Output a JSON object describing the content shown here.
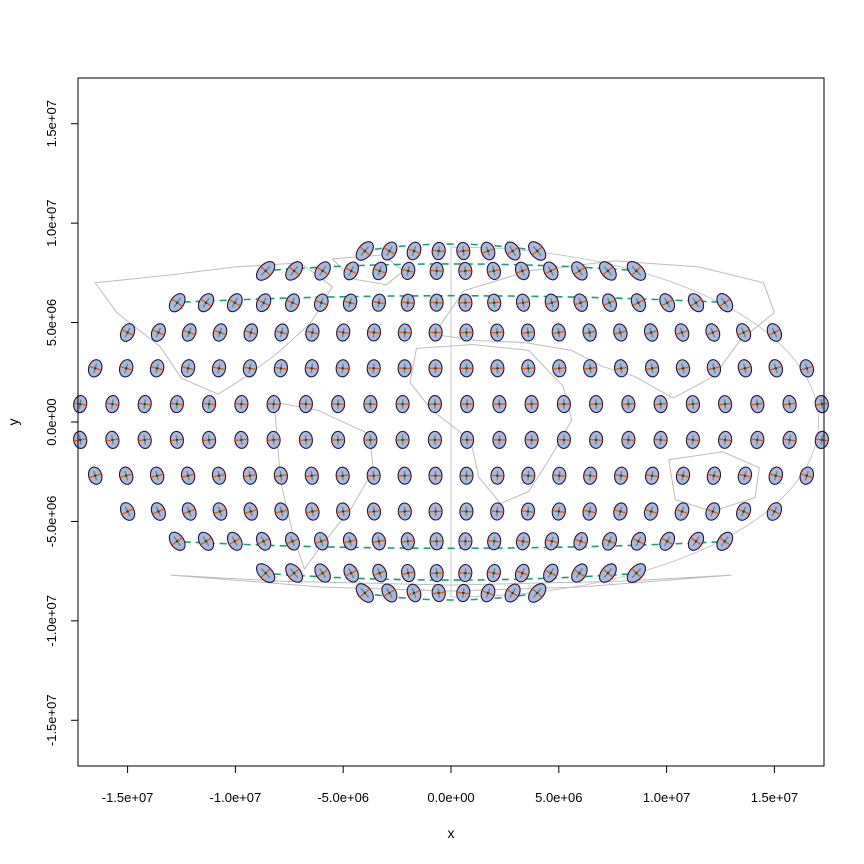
{
  "chart_data": {
    "type": "scatter",
    "title": "",
    "xlabel": "x",
    "ylabel": "y",
    "xlim": [
      -17300000,
      17300000
    ],
    "ylim": [
      -17300000,
      17300000
    ],
    "xticks": [
      {
        "value": -15000000,
        "label": "-1.5e+07"
      },
      {
        "value": -10000000,
        "label": "-1.0e+07"
      },
      {
        "value": -5000000,
        "label": "-5.0e+06"
      },
      {
        "value": 0,
        "label": "0.0e+00"
      },
      {
        "value": 5000000,
        "label": "5.0e+06"
      },
      {
        "value": 10000000,
        "label": "1.0e+07"
      },
      {
        "value": 15000000,
        "label": "1.5e+07"
      }
    ],
    "yticks": [
      {
        "value": -15000000,
        "label": "-1.5e+07"
      },
      {
        "value": -10000000,
        "label": "-1.0e+07"
      },
      {
        "value": -5000000,
        "label": "-5.0e+06"
      },
      {
        "value": 0,
        "label": "0.0e+00"
      },
      {
        "value": 5000000,
        "label": "5.0e+06"
      },
      {
        "value": 10000000,
        "label": "1.0e+07"
      },
      {
        "value": 15000000,
        "label": "1.5e+07"
      }
    ],
    "grid": false,
    "legend": "none",
    "projection_extent": {
      "x_half_width": 17400000,
      "y_half_height": 8800000
    },
    "indicatrix_rows": [
      {
        "y": 8600000,
        "cols": 8,
        "x_half": 4000000,
        "stretch": 3.2
      },
      {
        "y": 7600000,
        "cols": 14,
        "x_half": 8600000,
        "stretch": 2.1
      },
      {
        "y": 6000000,
        "cols": 20,
        "x_half": 12700000,
        "stretch": 1.5
      },
      {
        "y": 4500000,
        "cols": 22,
        "x_half": 15000000,
        "stretch": 1.25
      },
      {
        "y": 2700000,
        "cols": 24,
        "x_half": 16500000,
        "stretch": 1.1
      },
      {
        "y": 900000,
        "cols": 24,
        "x_half": 17200000,
        "stretch": 1.0
      },
      {
        "y": -900000,
        "cols": 24,
        "x_half": 17200000,
        "stretch": 1.0
      },
      {
        "y": -2700000,
        "cols": 24,
        "x_half": 16500000,
        "stretch": 1.1
      },
      {
        "y": -4500000,
        "cols": 22,
        "x_half": 15000000,
        "stretch": 1.25
      },
      {
        "y": -6000000,
        "cols": 20,
        "x_half": 12700000,
        "stretch": 1.5
      },
      {
        "y": -7600000,
        "cols": 14,
        "x_half": 8600000,
        "stretch": 2.1
      },
      {
        "y": -8600000,
        "cols": 8,
        "x_half": 4000000,
        "stretch": 3.2
      }
    ],
    "colors": {
      "ellipse_fill": "#b3b3dc",
      "ellipse_stroke": "#1a1a3a",
      "major_axis": "#2ca58d",
      "minor_axis": "#e66101",
      "coastline": "#bdbdbd",
      "dashed_parallel": "#1b9e77",
      "frame": "#000000"
    }
  }
}
